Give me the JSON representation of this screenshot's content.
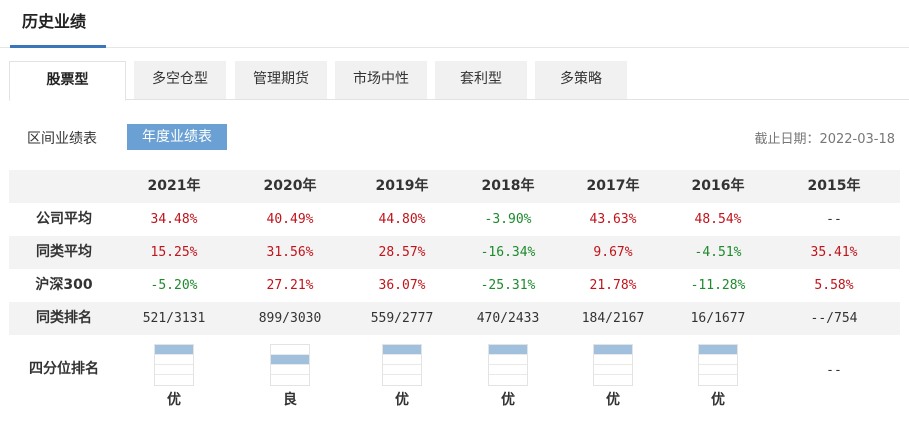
{
  "section_title": "历史业绩",
  "tabs": [
    {
      "label": "股票型",
      "active": true
    },
    {
      "label": "多空仓型",
      "active": false
    },
    {
      "label": "管理期货",
      "active": false
    },
    {
      "label": "市场中性",
      "active": false
    },
    {
      "label": "套利型",
      "active": false
    },
    {
      "label": "多策略",
      "active": false
    }
  ],
  "subnav": {
    "interval_label": "区间业绩表",
    "annual_label": "年度业绩表",
    "cutoff": "截止日期：2022-03-18"
  },
  "table": {
    "years": [
      "2021年",
      "2020年",
      "2019年",
      "2018年",
      "2017年",
      "2016年",
      "2015年"
    ],
    "rows": [
      {
        "label": "公司平均",
        "values": [
          "34.48%",
          "40.49%",
          "44.80%",
          "-3.90%",
          "43.63%",
          "48.54%",
          "--"
        ]
      },
      {
        "label": "同类平均",
        "values": [
          "15.25%",
          "31.56%",
          "28.57%",
          "-16.34%",
          "9.67%",
          "-4.51%",
          "35.41%"
        ]
      },
      {
        "label": "沪深300",
        "values": [
          "-5.20%",
          "27.21%",
          "36.07%",
          "-25.31%",
          "21.78%",
          "-11.28%",
          "5.58%"
        ]
      },
      {
        "label": "同类排名",
        "values": [
          "521/3131",
          "899/3030",
          "559/2777",
          "470/2433",
          "184/2167",
          "16/1677",
          "--/754"
        ]
      }
    ]
  },
  "quartile": {
    "label": "四分位排名",
    "entries": [
      {
        "quartile": 1,
        "text": "优"
      },
      {
        "quartile": 2,
        "text": "良"
      },
      {
        "quartile": 1,
        "text": "优"
      },
      {
        "quartile": 1,
        "text": "优"
      },
      {
        "quartile": 1,
        "text": "优"
      },
      {
        "quartile": 1,
        "text": "优"
      },
      {
        "quartile": null,
        "text": "--"
      }
    ]
  },
  "colors": {
    "accent": "#3a76b8",
    "active_button": "#6aa0d3",
    "positive": "#c0141b",
    "negative": "#1d8a2c",
    "quartile_fill": "#a0c0de"
  }
}
